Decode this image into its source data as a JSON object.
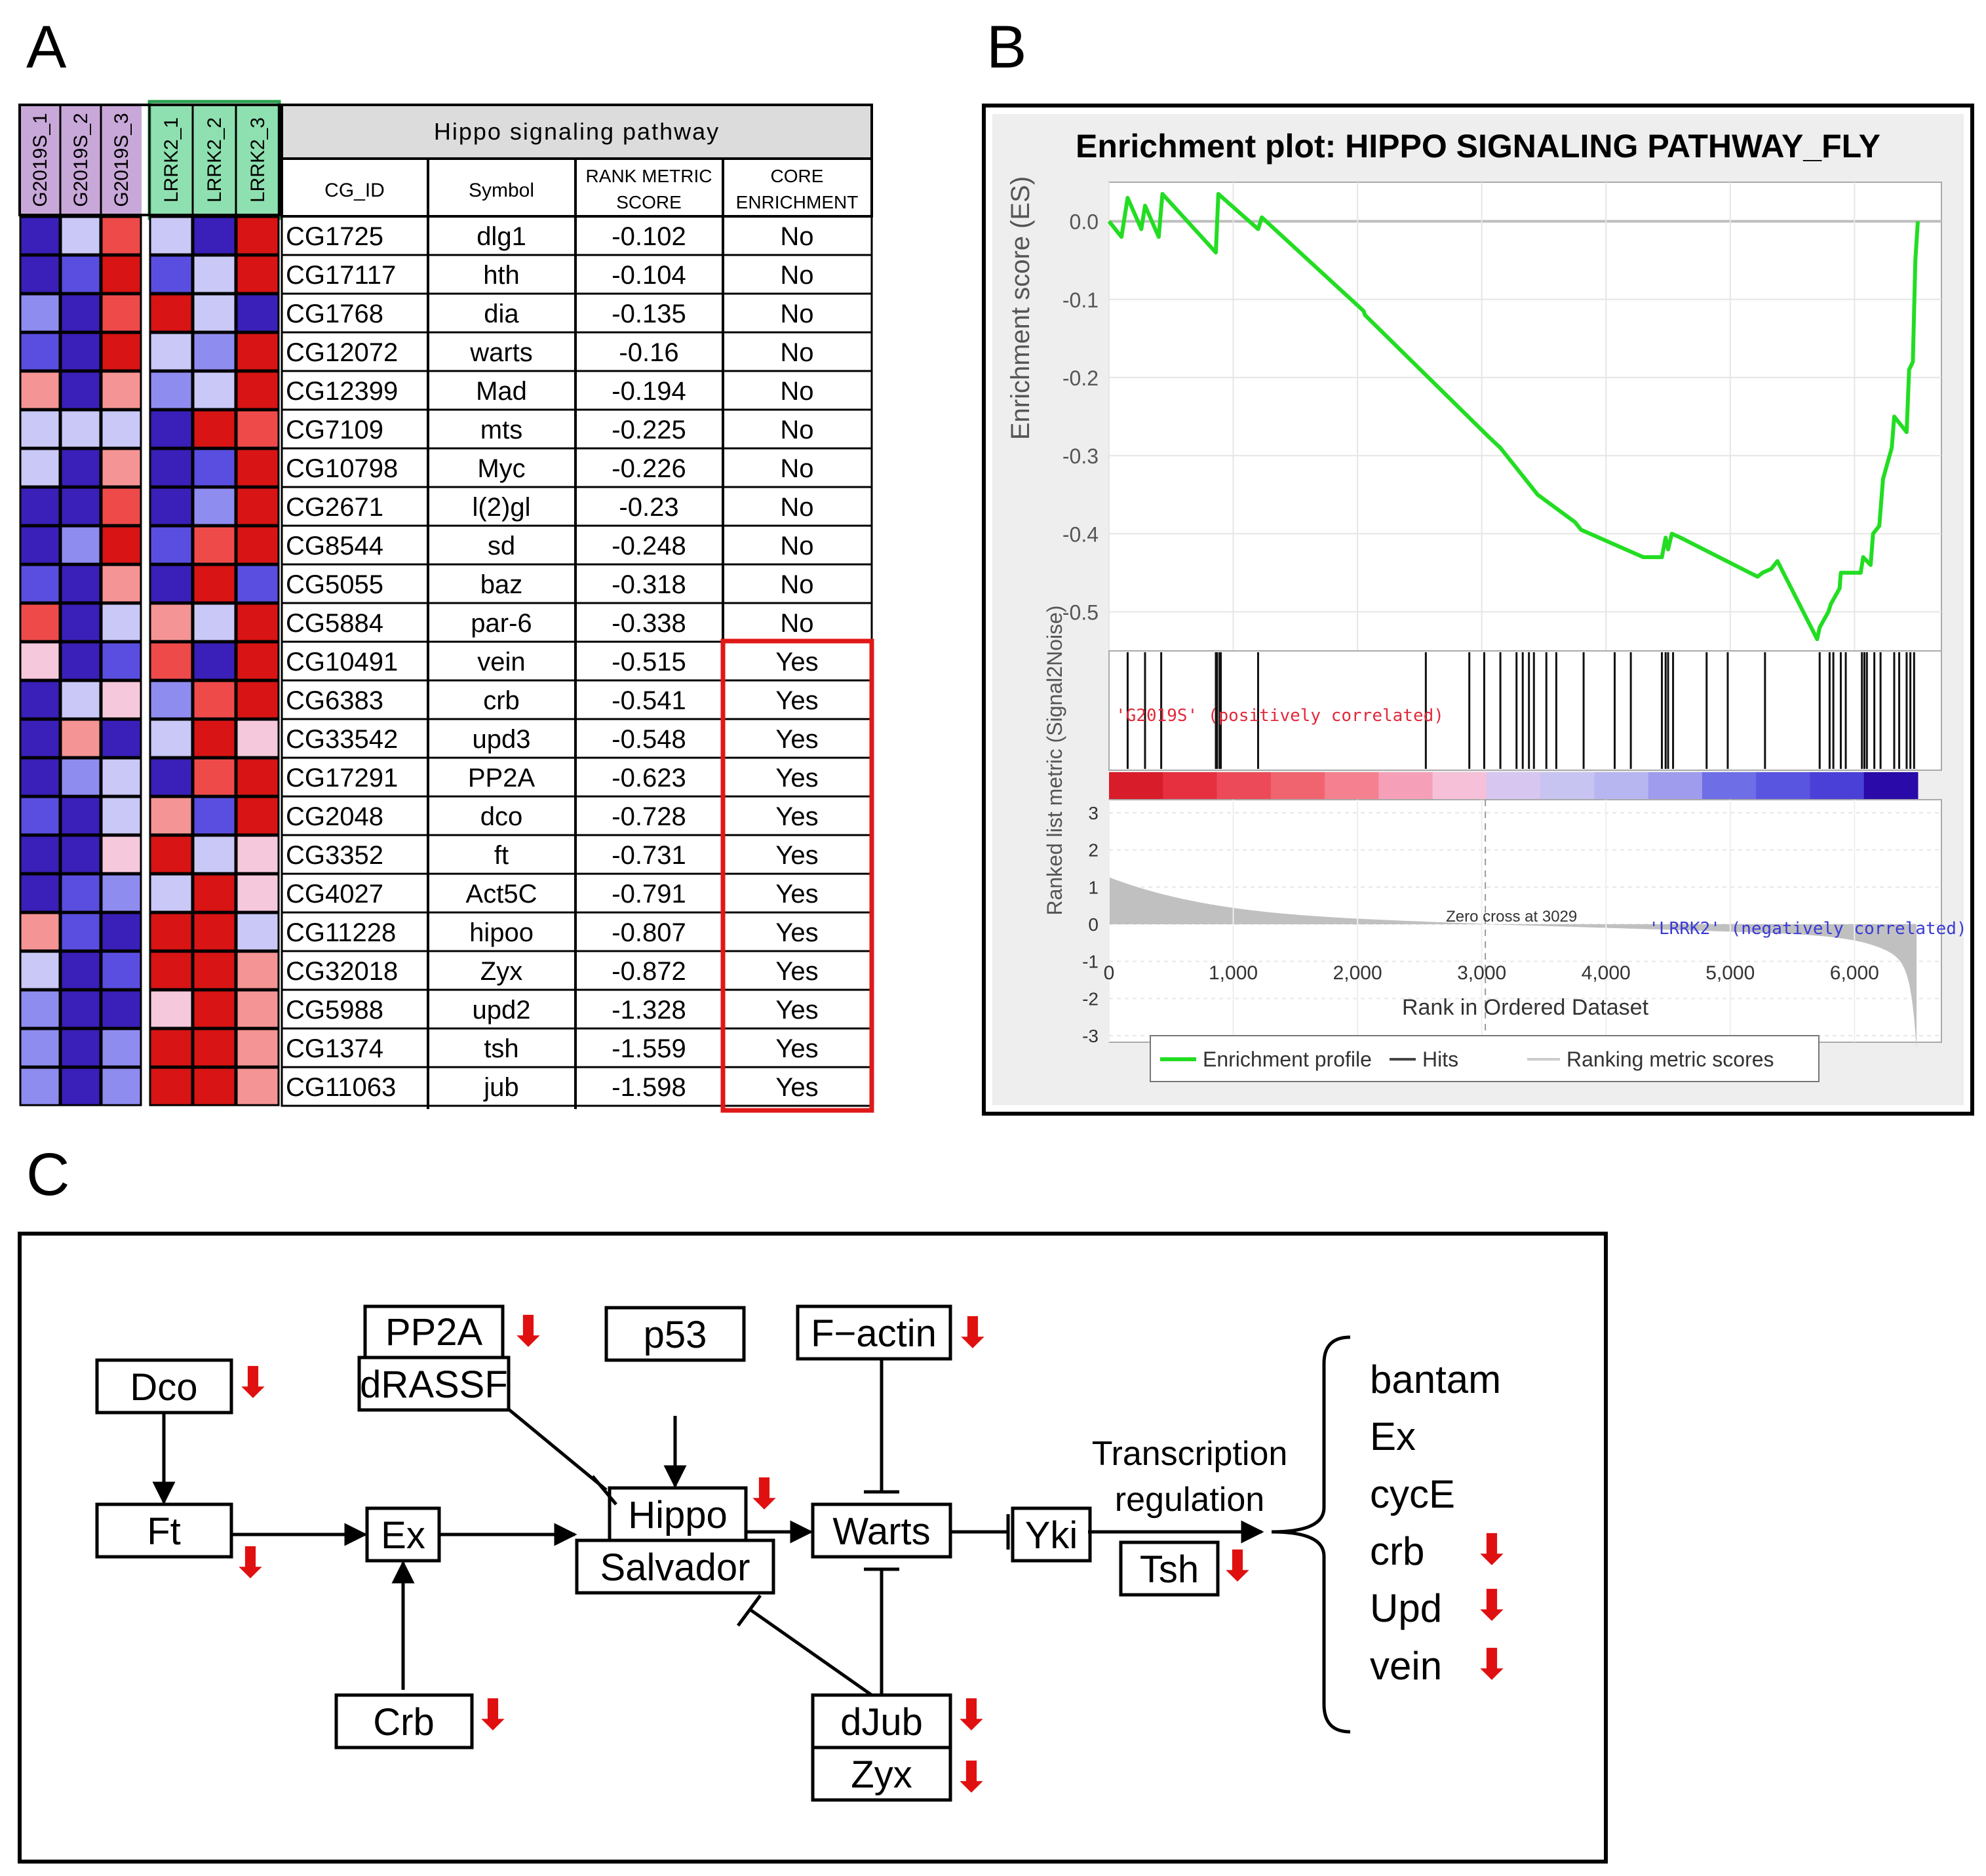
{
  "panels": {
    "a": "A",
    "b": "B",
    "c": "C"
  },
  "heatmap": {
    "samples": [
      "G2019S_1",
      "G2019S_2",
      "G2019S_3",
      "LRRK2_1",
      "LRRK2_2",
      "LRRK2_3"
    ],
    "colors": {
      "dark_blue": "#3a1fb8",
      "blue": "#5a4ee0",
      "mid_blue": "#8f8cf0",
      "light_blue": "#c9c8f6",
      "pale_pink": "#f6c8dc",
      "light_red": "#f59494",
      "mid_red": "#ef4a4a",
      "red": "#d81414",
      "g2019s_header": "#c8a8d8",
      "lrrk2_header": "#8fe0b0"
    },
    "cells": [
      [
        "dark_blue",
        "light_blue",
        "mid_red",
        "light_blue",
        "dark_blue",
        "red"
      ],
      [
        "dark_blue",
        "blue",
        "red",
        "blue",
        "light_blue",
        "red"
      ],
      [
        "mid_blue",
        "dark_blue",
        "mid_red",
        "red",
        "light_blue",
        "dark_blue"
      ],
      [
        "blue",
        "dark_blue",
        "red",
        "light_blue",
        "mid_blue",
        "red"
      ],
      [
        "light_red",
        "dark_blue",
        "light_red",
        "mid_blue",
        "light_blue",
        "red"
      ],
      [
        "light_blue",
        "light_blue",
        "light_blue",
        "dark_blue",
        "red",
        "mid_red"
      ],
      [
        "light_blue",
        "dark_blue",
        "light_red",
        "dark_blue",
        "blue",
        "red"
      ],
      [
        "dark_blue",
        "dark_blue",
        "mid_red",
        "dark_blue",
        "mid_blue",
        "red"
      ],
      [
        "dark_blue",
        "mid_blue",
        "red",
        "blue",
        "mid_red",
        "red"
      ],
      [
        "blue",
        "dark_blue",
        "light_red",
        "dark_blue",
        "red",
        "blue"
      ],
      [
        "mid_red",
        "dark_blue",
        "light_blue",
        "light_red",
        "light_blue",
        "red"
      ],
      [
        "pale_pink",
        "dark_blue",
        "blue",
        "mid_red",
        "dark_blue",
        "red"
      ],
      [
        "dark_blue",
        "light_blue",
        "pale_pink",
        "mid_blue",
        "mid_red",
        "red"
      ],
      [
        "dark_blue",
        "light_red",
        "dark_blue",
        "light_blue",
        "red",
        "pale_pink"
      ],
      [
        "dark_blue",
        "mid_blue",
        "light_blue",
        "dark_blue",
        "mid_red",
        "red"
      ],
      [
        "blue",
        "dark_blue",
        "light_blue",
        "light_red",
        "blue",
        "red"
      ],
      [
        "dark_blue",
        "dark_blue",
        "pale_pink",
        "red",
        "light_blue",
        "pale_pink"
      ],
      [
        "dark_blue",
        "blue",
        "mid_blue",
        "light_blue",
        "red",
        "pale_pink"
      ],
      [
        "light_red",
        "blue",
        "dark_blue",
        "red",
        "red",
        "light_blue"
      ],
      [
        "light_blue",
        "dark_blue",
        "blue",
        "red",
        "red",
        "light_red"
      ],
      [
        "mid_blue",
        "dark_blue",
        "dark_blue",
        "pale_pink",
        "red",
        "light_red"
      ],
      [
        "mid_blue",
        "dark_blue",
        "mid_blue",
        "red",
        "red",
        "light_red"
      ],
      [
        "mid_blue",
        "dark_blue",
        "mid_blue",
        "red",
        "red",
        "light_red"
      ]
    ]
  },
  "table": {
    "title": "Hippo signaling pathway",
    "headers": {
      "cg_id": "CG_ID",
      "symbol": "Symbol",
      "rank1": "RANK METRIC",
      "rank2": "SCORE",
      "core1": "CORE",
      "core2": "ENRICHMENT"
    },
    "rows": [
      {
        "cg": "CG1725",
        "symbol": "dlg1",
        "score": "-0.102",
        "core": "No"
      },
      {
        "cg": "CG17117",
        "symbol": "hth",
        "score": "-0.104",
        "core": "No"
      },
      {
        "cg": "CG1768",
        "symbol": "dia",
        "score": "-0.135",
        "core": "No"
      },
      {
        "cg": "CG12072",
        "symbol": "warts",
        "score": "-0.16",
        "core": "No"
      },
      {
        "cg": "CG12399",
        "symbol": "Mad",
        "score": "-0.194",
        "core": "No"
      },
      {
        "cg": "CG7109",
        "symbol": "mts",
        "score": "-0.225",
        "core": "No"
      },
      {
        "cg": "CG10798",
        "symbol": "Myc",
        "score": "-0.226",
        "core": "No"
      },
      {
        "cg": "CG2671",
        "symbol": "l(2)gl",
        "score": "-0.23",
        "core": "No"
      },
      {
        "cg": "CG8544",
        "symbol": "sd",
        "score": "-0.248",
        "core": "No"
      },
      {
        "cg": "CG5055",
        "symbol": "baz",
        "score": "-0.318",
        "core": "No"
      },
      {
        "cg": "CG5884",
        "symbol": "par-6",
        "score": "-0.338",
        "core": "No"
      },
      {
        "cg": "CG10491",
        "symbol": "vein",
        "score": "-0.515",
        "core": "Yes"
      },
      {
        "cg": "CG6383",
        "symbol": "crb",
        "score": "-0.541",
        "core": "Yes"
      },
      {
        "cg": "CG33542",
        "symbol": "upd3",
        "score": "-0.548",
        "core": "Yes"
      },
      {
        "cg": "CG17291",
        "symbol": "PP2A",
        "score": "-0.623",
        "core": "Yes"
      },
      {
        "cg": "CG2048",
        "symbol": "dco",
        "score": "-0.728",
        "core": "Yes"
      },
      {
        "cg": "CG3352",
        "symbol": "ft",
        "score": "-0.731",
        "core": "Yes"
      },
      {
        "cg": "CG4027",
        "symbol": "Act5C",
        "score": "-0.791",
        "core": "Yes"
      },
      {
        "cg": "CG11228",
        "symbol": "hipoo",
        "score": "-0.807",
        "core": "Yes"
      },
      {
        "cg": "CG32018",
        "symbol": "Zyx",
        "score": "-0.872",
        "core": "Yes"
      },
      {
        "cg": "CG5988",
        "symbol": "upd2",
        "score": "-1.328",
        "core": "Yes"
      },
      {
        "cg": "CG1374",
        "symbol": "tsh",
        "score": "-1.559",
        "core": "Yes"
      },
      {
        "cg": "CG11063",
        "symbol": "jub",
        "score": "-1.598",
        "core": "Yes"
      }
    ],
    "highlight_color": "#e01818"
  },
  "chart_data": {
    "type": "line",
    "title": "Enrichment plot: HIPPO SIGNALING PATHWAY_FLY",
    "ylabel": "Enrichment score (ES)",
    "ylim": [
      -0.55,
      0.05
    ],
    "yticks": [
      "0.0",
      "-0.1",
      "-0.2",
      "-0.3",
      "-0.4",
      "-0.5"
    ],
    "ytick_values": [
      0.0,
      -0.1,
      -0.2,
      -0.3,
      -0.4,
      -0.5
    ],
    "xlabel": "Rank in Ordered Dataset",
    "xlim": [
      0,
      6700
    ],
    "xticks": [
      "0",
      "1,000",
      "2,000",
      "3,000",
      "4,000",
      "5,000",
      "6,000"
    ],
    "xtick_values": [
      0,
      1000,
      2000,
      3000,
      4000,
      5000,
      6000
    ],
    "series": [
      {
        "name": "Enrichment profile",
        "color": "#22dd22",
        "x": [
          0,
          100,
          150,
          260,
          290,
          400,
          430,
          860,
          880,
          1200,
          1230,
          2050,
          2060,
          3050,
          3150,
          3400,
          3450,
          3750,
          3800,
          4300,
          4450,
          4480,
          4500,
          4530,
          4600,
          5220,
          5260,
          5330,
          5380,
          5700,
          5720,
          5790,
          5810,
          5880,
          5890,
          6050,
          6070,
          6130,
          6150,
          6200,
          6230,
          6300,
          6320,
          6420,
          6440,
          6470,
          6490,
          6510
        ],
        "y": [
          0.0,
          -0.02,
          0.03,
          -0.01,
          0.02,
          -0.02,
          0.035,
          -0.04,
          0.035,
          -0.01,
          0.005,
          -0.115,
          -0.12,
          -0.275,
          -0.29,
          -0.34,
          -0.35,
          -0.385,
          -0.395,
          -0.43,
          -0.43,
          -0.405,
          -0.42,
          -0.4,
          -0.405,
          -0.455,
          -0.45,
          -0.445,
          -0.435,
          -0.535,
          -0.52,
          -0.5,
          -0.49,
          -0.47,
          -0.45,
          -0.45,
          -0.43,
          -0.44,
          -0.4,
          -0.39,
          -0.33,
          -0.29,
          -0.25,
          -0.27,
          -0.19,
          -0.18,
          -0.05,
          0.0
        ]
      }
    ],
    "hits": [
      150,
      290,
      420,
      860,
      870,
      890,
      900,
      1200,
      2550,
      2900,
      3020,
      3150,
      3280,
      3330,
      3380,
      3420,
      3520,
      3600,
      3820,
      4070,
      4200,
      4450,
      4480,
      4500,
      4540,
      4810,
      4980,
      5280,
      5720,
      5800,
      5830,
      5890,
      5930,
      6060,
      6080,
      6100,
      6160,
      6210,
      6320,
      6360,
      6420,
      6450,
      6480
    ],
    "color_bar": [
      "#d91c2a",
      "#e63040",
      "#ec4a58",
      "#f06470",
      "#f48090",
      "#f5a0b8",
      "#f6c0d8",
      "#d6c6f0",
      "#c8c4f2",
      "#b8b6f0",
      "#9f9cee",
      "#6e6ee6",
      "#5a55e0",
      "#4a40d8",
      "#2a0aa8"
    ],
    "metric": {
      "ylabel": "Ranked list metric (Signal2Noise)",
      "yticks": [
        "3",
        "2",
        "1",
        "0",
        "-1",
        "-2",
        "-3"
      ],
      "ytick_values": [
        3,
        2,
        1,
        0,
        -1,
        -2,
        -3
      ],
      "positive_label": "'G2019S' (positively correlated)",
      "negative_label": "'LRRK2' (negatively correlated)",
      "zero_cross": "Zero cross at 3029",
      "zero_cross_x": 3029,
      "fill": "#c0c0c0"
    },
    "legend": [
      "Enrichment profile",
      "Hits",
      "Ranking metric scores"
    ],
    "legend_position": "bottom"
  },
  "diagram": {
    "nodes": {
      "pp2a": "PP2A",
      "drassf": "dRASSF",
      "p53": "p53",
      "factin": "F−actin",
      "dco": "Dco",
      "ft": "Ft",
      "ex": "Ex",
      "hippo": "Hippo",
      "salvador": "Salvador",
      "warts": "Warts",
      "yki": "Yki",
      "tsh": "Tsh",
      "crb": "Crb",
      "djub": "dJub",
      "zyx": "Zyx"
    },
    "transcription_1": "Transcription",
    "transcription_2": "regulation",
    "targets": [
      "bantam",
      "Ex",
      "cycE",
      "crb",
      "Upd",
      "vein"
    ],
    "down_arrow": "⬇",
    "arrow_color": "#e01010"
  }
}
